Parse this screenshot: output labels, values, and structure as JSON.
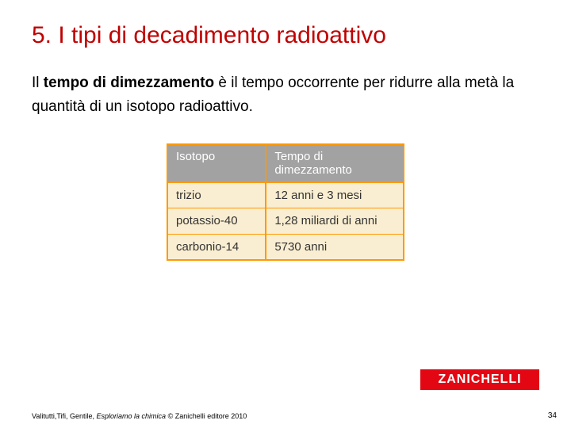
{
  "title": "5. I tipi di decadimento radioattivo",
  "body": {
    "prefix": "Il ",
    "bold": "tempo di dimezzamento",
    "suffix": " è il tempo occorrente per ridurre alla metà la quantità di un isotopo radioattivo."
  },
  "table": {
    "header_col1": "Isotopo",
    "header_col2": "Tempo di dimezzamento",
    "rows": [
      {
        "isotope": "trizio",
        "halflife": "12 anni e 3 mesi"
      },
      {
        "isotope": "potassio-40",
        "halflife": "1,28 miliardi di anni"
      },
      {
        "isotope": "carbonio-14",
        "halflife": "5730 anni"
      }
    ],
    "bg_color": "#faeed2",
    "border_color": "#ff9900",
    "header_bg": "#a2a2a2",
    "header_fg": "#ffffff"
  },
  "logo_text": "ZANICHELLI",
  "logo_bg": "#e30613",
  "footer": {
    "authors": "Valitutti,Tifi, Gentile, ",
    "book": "Esploriamo la chimica",
    "rest": " © Zanichelli editore 2010"
  },
  "page_number": "34"
}
